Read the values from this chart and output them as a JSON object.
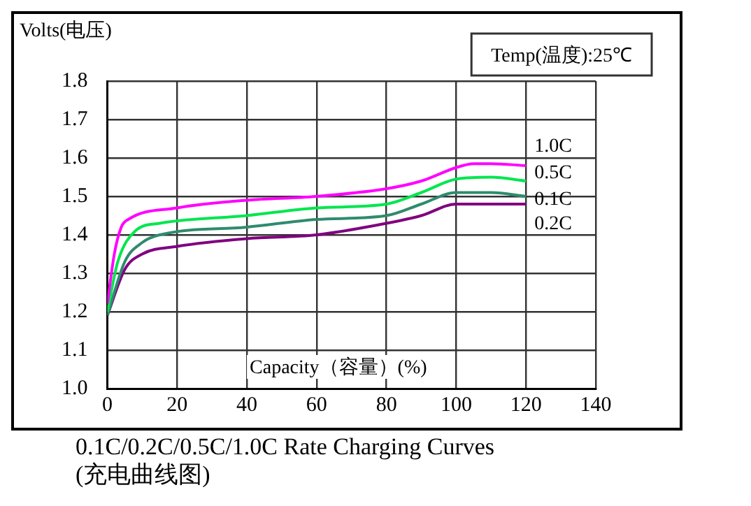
{
  "chart_data": {
    "type": "line",
    "title": "0.1C/0.2C/0.5C/1.0C Rate Charging Curves\n(充电曲线图)",
    "xlabel": "Capacity（容量）(%)",
    "ylabel": "Volts(电压)",
    "annotations": [
      "Temp(温度):25℃"
    ],
    "xlim": [
      0,
      140
    ],
    "xticks": [
      0,
      20,
      40,
      60,
      80,
      100,
      120,
      140
    ],
    "ylim": [
      1.0,
      1.8
    ],
    "yticks": [
      {
        "value": 1.0,
        "label": "1.0"
      },
      1.1,
      1.2,
      1.3,
      1.4,
      1.5,
      1.6,
      1.7,
      1.8
    ],
    "grid": true,
    "legend": false,
    "marker": "none",
    "line_style": "solid",
    "series": [
      {
        "name": "1.0C",
        "color": "#ff00ff",
        "x": [
          0,
          2,
          4,
          6,
          20,
          40,
          60,
          80,
          90,
          100,
          105,
          110,
          120
        ],
        "values": [
          1.22,
          1.35,
          1.42,
          1.44,
          1.47,
          1.49,
          1.5,
          1.52,
          1.54,
          1.575,
          1.585,
          1.585,
          1.58
        ]
      },
      {
        "name": "0.5C",
        "color": "#00e64d",
        "x": [
          0,
          3,
          8,
          15,
          40,
          60,
          80,
          90,
          100,
          110,
          120
        ],
        "values": [
          1.2,
          1.33,
          1.41,
          1.43,
          1.45,
          1.47,
          1.48,
          1.51,
          1.545,
          1.55,
          1.54
        ]
      },
      {
        "name": "0.1C",
        "color": "#2e8b6e",
        "x": [
          0,
          5,
          10,
          15,
          40,
          60,
          80,
          90,
          100,
          110,
          120
        ],
        "values": [
          1.19,
          1.33,
          1.38,
          1.4,
          1.42,
          1.44,
          1.45,
          1.48,
          1.51,
          1.51,
          1.5
        ]
      },
      {
        "name": "0.2C",
        "color": "#800080",
        "x": [
          0,
          5,
          10,
          20,
          40,
          60,
          80,
          90,
          100,
          120
        ],
        "values": [
          1.19,
          1.31,
          1.35,
          1.37,
          1.39,
          1.4,
          1.43,
          1.45,
          1.48,
          1.48
        ]
      }
    ]
  }
}
